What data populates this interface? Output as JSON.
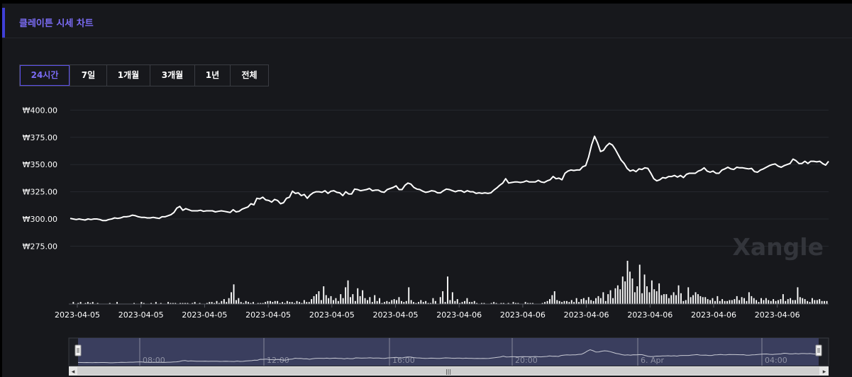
{
  "header": {
    "title": "클레이튼 시세 차트"
  },
  "tabs": [
    {
      "label": "24시간",
      "active": true
    },
    {
      "label": "7일",
      "active": false
    },
    {
      "label": "1개월",
      "active": false
    },
    {
      "label": "3개월",
      "active": false
    },
    {
      "label": "1년",
      "active": false
    },
    {
      "label": "전체",
      "active": false
    }
  ],
  "watermark": "Xangle",
  "navigator": {
    "labels": [
      "08:00",
      "12:00",
      "16:00",
      "20:00",
      "6. Apr",
      "04:00"
    ],
    "scroll_grip": "|||"
  },
  "colors": {
    "accent": "#5a4ee8",
    "title": "#7b6cf5",
    "line": "#ffffff",
    "background": "#17181c",
    "navigator_fill": "#3a3e5e"
  },
  "chart_data": {
    "type": "line",
    "y_tick_labels": [
      "₩400.00",
      "₩375.00",
      "₩350.00",
      "₩325.00",
      "₩300.00",
      "₩275.00"
    ],
    "y_ticks": [
      400,
      375,
      350,
      325,
      300,
      275
    ],
    "ylim": [
      275,
      400
    ],
    "x_tick_labels": [
      "2023-04-05",
      "2023-04-05",
      "2023-04-05",
      "2023-04-05",
      "2023-04-05",
      "2023-04-05",
      "2023-04-06",
      "2023-04-06",
      "2023-04-06",
      "2023-04-06",
      "2023-04-06",
      "2023-04-06"
    ],
    "grid": true,
    "series": [
      {
        "values": [
          300.5,
          300,
          299.5,
          300,
          299.5,
          299,
          300,
          299.5,
          300,
          300,
          299.5,
          298.5,
          298.5,
          299.5,
          300,
          301,
          300.5,
          301,
          302,
          302,
          302.5,
          303.5,
          303,
          302,
          301.5,
          301.5,
          301,
          301,
          301.5,
          301,
          300.5,
          302,
          302,
          303,
          304,
          306,
          310,
          311.5,
          308,
          309.5,
          308.5,
          307.5,
          307.5,
          307.5,
          308,
          307,
          307.5,
          307.5,
          307.5,
          306.5,
          307,
          307.5,
          307,
          306.5,
          306,
          308.5,
          306.5,
          307,
          309,
          310,
          311,
          314,
          313,
          319,
          318.5,
          320,
          317.5,
          317,
          315.5,
          318,
          317,
          314,
          315,
          319,
          320,
          325.5,
          323.5,
          324,
          321.5,
          322.5,
          319,
          322,
          324,
          325,
          325,
          324.5,
          326,
          323.5,
          325.5,
          326,
          324.5,
          324,
          321.5,
          325,
          323,
          323,
          327.5,
          327,
          326,
          326.5,
          327,
          328,
          326,
          326.5,
          326.5,
          325,
          324.5,
          327,
          328,
          329,
          330.5,
          327,
          327,
          331,
          333,
          332,
          329,
          327.5,
          327,
          325.5,
          324.5,
          325,
          326,
          325.5,
          324,
          324,
          326,
          327.5,
          327,
          326,
          325,
          326,
          326,
          324.5,
          326,
          325,
          325,
          323.5,
          324,
          323.5,
          324,
          323.5,
          324,
          326.5,
          328.5,
          331,
          333,
          337,
          333,
          333.5,
          334,
          334,
          333.5,
          334,
          335,
          334,
          334,
          334,
          335.5,
          334,
          333.5,
          335,
          336,
          339,
          337,
          337.5,
          336,
          342,
          344,
          345,
          344.5,
          345,
          345,
          348,
          349,
          357,
          368,
          376,
          370,
          362,
          363,
          367,
          369.5,
          368,
          364,
          359,
          354,
          351,
          346.5,
          344,
          345,
          343.5,
          346,
          345.5,
          347,
          346.5,
          342,
          337,
          335,
          336,
          338,
          337.5,
          339,
          339,
          340,
          338.5,
          340,
          338,
          341,
          342,
          342,
          342,
          344,
          345,
          347,
          344,
          343,
          344,
          342,
          342,
          345,
          346,
          347.5,
          346,
          345.5,
          347.5,
          347,
          347,
          346.5,
          346,
          346.5,
          343.5,
          343,
          345,
          346,
          347.5,
          349,
          350,
          350.5,
          348.5,
          347.5,
          349,
          350,
          351,
          355,
          353.5,
          351,
          351,
          353,
          351,
          353,
          353,
          352.5,
          353,
          351,
          349.5,
          353
        ]
      }
    ],
    "volume": [
      0,
      2,
      0,
      1,
      2,
      0,
      1,
      2,
      1,
      2,
      0,
      1,
      0,
      0,
      0,
      0,
      1,
      0,
      0,
      2,
      0,
      0,
      0,
      0,
      0,
      0,
      1,
      0,
      0,
      2,
      1,
      0,
      0,
      1,
      0,
      2,
      0,
      1,
      0,
      0,
      2,
      1,
      1,
      1,
      0,
      1,
      1,
      1,
      1,
      0,
      1,
      2,
      0,
      1,
      0,
      0,
      1,
      2,
      2,
      1,
      3,
      1,
      3,
      5,
      2,
      6,
      12,
      20,
      4,
      6,
      2,
      1,
      3,
      2,
      1,
      2,
      0,
      1,
      1,
      1,
      2,
      3,
      3,
      2,
      3,
      3,
      1,
      2,
      1,
      3,
      2,
      2,
      1,
      3,
      2,
      1,
      4,
      2,
      2,
      5,
      8,
      10,
      13,
      4,
      18,
      9,
      6,
      8,
      4,
      6,
      3,
      10,
      6,
      17,
      24,
      7,
      10,
      3,
      16,
      8,
      14,
      6,
      4,
      7,
      2,
      9,
      3,
      6,
      1,
      2,
      3,
      2,
      4,
      5,
      4,
      7,
      3,
      2,
      3,
      17,
      4,
      2,
      1,
      2,
      4,
      2,
      3,
      1,
      1,
      6,
      3,
      0,
      7,
      13,
      2,
      28,
      4,
      12,
      3,
      5,
      1,
      2,
      3,
      6,
      2,
      2,
      3,
      1,
      0,
      1,
      1,
      0,
      0,
      1,
      2,
      1,
      0,
      1,
      1,
      0,
      1,
      0,
      2,
      1,
      1,
      0,
      0,
      2,
      1,
      1,
      1,
      0,
      0,
      0,
      1,
      2,
      3,
      5,
      9,
      13,
      4,
      3,
      2,
      3,
      3,
      2,
      4,
      2,
      6,
      2,
      5,
      6,
      4,
      7,
      4,
      3,
      6,
      8,
      6,
      12,
      3,
      10,
      14,
      6,
      16,
      19,
      15,
      28,
      23,
      44,
      33,
      26,
      12,
      18,
      40,
      11,
      30,
      18,
      12,
      24,
      15,
      13,
      21,
      9,
      10,
      10,
      6,
      9,
      12,
      9,
      19,
      11,
      3,
      4,
      17,
      7,
      9,
      12,
      10,
      8,
      7,
      7,
      5,
      4,
      6,
      3,
      8,
      3,
      5,
      3,
      3,
      4,
      4,
      5,
      8,
      4,
      7,
      6,
      3,
      12,
      8,
      6,
      4,
      2,
      6,
      4,
      6,
      4,
      3,
      5,
      3,
      4,
      5,
      10,
      3,
      5,
      6,
      4,
      4,
      17,
      7,
      6,
      5,
      3,
      2,
      6,
      4,
      4,
      5,
      3,
      3,
      3
    ]
  }
}
